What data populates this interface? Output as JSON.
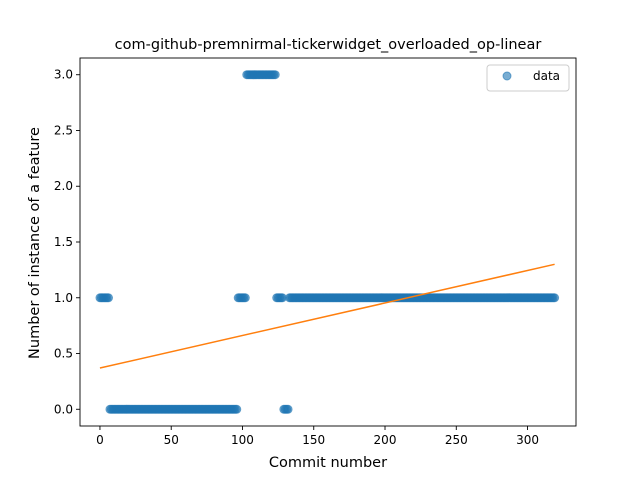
{
  "chart_data": {
    "type": "scatter",
    "title": "com-github-premnirmal-tickerwidget_overloaded_op-linear",
    "xlabel": "Commit number",
    "ylabel": "Number of instance of a feature",
    "xlim": [
      -14,
      334
    ],
    "ylim": [
      -0.15,
      3.15
    ],
    "xticks": [
      0,
      50,
      100,
      150,
      200,
      250,
      300
    ],
    "yticks": [
      0.0,
      0.5,
      1.0,
      1.5,
      2.0,
      2.5,
      3.0
    ],
    "xtick_labels": [
      "0",
      "50",
      "100",
      "150",
      "200",
      "250",
      "300"
    ],
    "ytick_labels": [
      "0.0",
      "0.5",
      "1.0",
      "1.5",
      "2.0",
      "2.5",
      "3.0"
    ],
    "legend": {
      "position": "top-right",
      "entries": [
        "data"
      ]
    },
    "series": [
      {
        "name": "data",
        "kind": "scatter",
        "color": "#1f77b4",
        "segments": [
          {
            "x_start": 0,
            "x_end": 6,
            "y": 1
          },
          {
            "x_start": 7,
            "x_end": 96,
            "y": 0
          },
          {
            "x_start": 97,
            "x_end": 102,
            "y": 1
          },
          {
            "x_start": 103,
            "x_end": 123,
            "y": 3
          },
          {
            "x_start": 124,
            "x_end": 128,
            "y": 1
          },
          {
            "x_start": 129,
            "x_end": 132,
            "y": 0
          },
          {
            "x_start": 133,
            "x_end": 319,
            "y": 1
          }
        ]
      },
      {
        "kind": "line",
        "color": "#ff7f0e",
        "x": [
          0,
          319
        ],
        "y": [
          0.37,
          1.3
        ]
      }
    ]
  }
}
